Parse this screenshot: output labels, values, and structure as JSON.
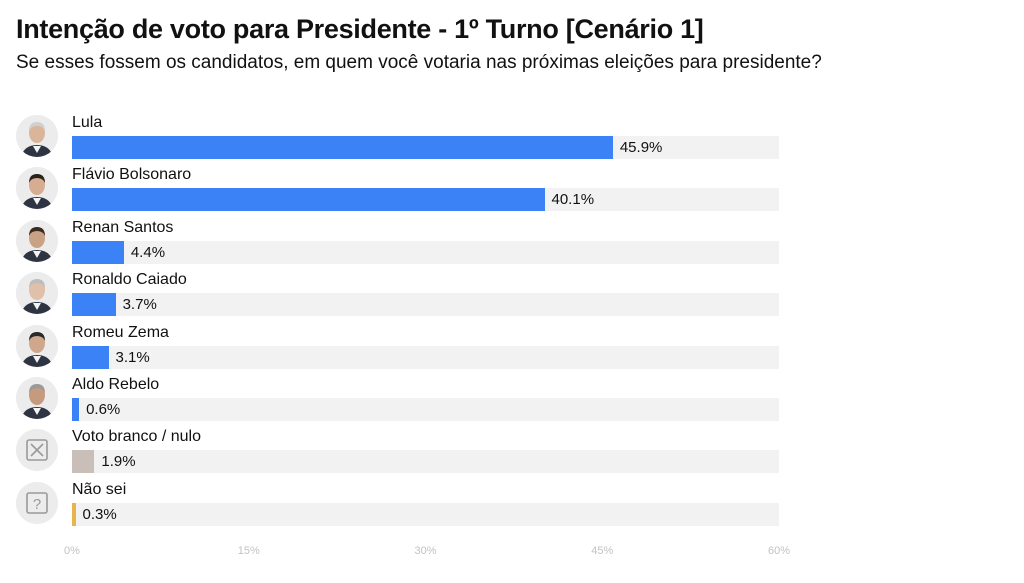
{
  "chart_data": {
    "type": "bar",
    "orientation": "horizontal",
    "title": "Intenção de voto para Presidente - 1º Turno [Cenário 1]",
    "subtitle": "Se esses fossem os candidatos, em quem você votaria nas próximas eleições para presidente?",
    "categories": [
      "Lula",
      "Flávio Bolsonaro",
      "Renan Santos",
      "Ronaldo Caiado",
      "Romeu Zema",
      "Aldo Rebelo",
      "Voto branco / nulo",
      "Não sei"
    ],
    "values": [
      45.9,
      40.1,
      4.4,
      3.7,
      3.1,
      0.6,
      1.9,
      0.3
    ],
    "value_labels": [
      "45.9%",
      "40.1%",
      "4.4%",
      "3.7%",
      "3.1%",
      "0.6%",
      "1.9%",
      "0.3%"
    ],
    "bar_colors": [
      "#3b82f6",
      "#3b82f6",
      "#3b82f6",
      "#3b82f6",
      "#3b82f6",
      "#3b82f6",
      "#c9bfb8",
      "#e8b54a"
    ],
    "icons": [
      "candidate-photo",
      "candidate-photo",
      "candidate-photo",
      "candidate-photo",
      "candidate-photo",
      "candidate-photo",
      "x-box-icon",
      "question-box-icon"
    ],
    "xlim": [
      0,
      60
    ],
    "x_ticks": [
      0,
      15,
      30,
      45,
      60
    ],
    "x_tick_labels": [
      "0%",
      "15%",
      "30%",
      "45%",
      "60%"
    ],
    "grid": false,
    "legend": "none"
  }
}
